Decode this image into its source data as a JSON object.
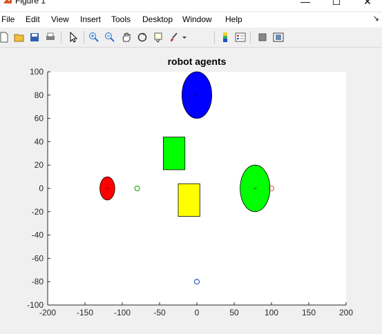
{
  "window": {
    "title": "Figure 1",
    "controls": {
      "minimize": "—",
      "maximize": "☐",
      "close": "✕"
    }
  },
  "menubar": {
    "items": [
      {
        "label": "File",
        "mnemonic": "F"
      },
      {
        "label": "Edit",
        "mnemonic": "E"
      },
      {
        "label": "View",
        "mnemonic": "V"
      },
      {
        "label": "Insert",
        "mnemonic": "I"
      },
      {
        "label": "Tools",
        "mnemonic": "T"
      },
      {
        "label": "Desktop",
        "mnemonic": "D"
      },
      {
        "label": "Window",
        "mnemonic": "W"
      },
      {
        "label": "Help",
        "mnemonic": "H"
      }
    ],
    "dock_icon": "dock-arrow-icon"
  },
  "toolbar": {
    "buttons": [
      "new-figure-icon",
      "open-file-icon",
      "save-icon",
      "print-icon",
      "edit-plot-icon",
      "zoom-in-icon",
      "zoom-out-icon",
      "pan-icon",
      "rotate-3d-icon",
      "data-cursor-icon",
      "brush-icon",
      "link-plot-icon",
      "insert-colorbar-icon",
      "hide-plot-tools-icon",
      "show-plot-tools-icon"
    ]
  },
  "chart_data": {
    "type": "scatter",
    "title": "robot agents",
    "xlabel": "",
    "ylabel": "",
    "xlim": [
      -200,
      200
    ],
    "ylim": [
      -100,
      100
    ],
    "xticks": [
      -200,
      -150,
      -100,
      -50,
      0,
      50,
      100,
      150,
      200
    ],
    "yticks": [
      -100,
      -80,
      -60,
      -40,
      -20,
      0,
      20,
      40,
      60,
      80,
      100
    ],
    "grid": false,
    "ellipses": [
      {
        "cx": -120,
        "cy": 0,
        "rx": 10,
        "ry": 10,
        "fill": "#ff0000"
      },
      {
        "cx": 0,
        "cy": 80,
        "rx": 20,
        "ry": 20,
        "fill": "#0000ff"
      },
      {
        "cx": 78,
        "cy": 0,
        "rx": 20,
        "ry": 20,
        "fill": "#00ff00"
      }
    ],
    "rectangles": [
      {
        "x": -45,
        "y": 16,
        "w": 29,
        "h": 28,
        "fill": "#00ff00"
      },
      {
        "x": -25,
        "y": -24,
        "w": 29,
        "h": 28,
        "fill": "#ffff00"
      }
    ],
    "markers": [
      {
        "x": -80,
        "y": 0,
        "color": "#00a000"
      },
      {
        "x": 100,
        "y": 0,
        "color": "#e05030"
      },
      {
        "x": 0,
        "y": -80,
        "color": "#0040c0"
      }
    ],
    "centers": [
      {
        "x": -120,
        "y": 0
      },
      {
        "x": 0,
        "y": 80
      },
      {
        "x": 78,
        "y": 0
      }
    ]
  }
}
